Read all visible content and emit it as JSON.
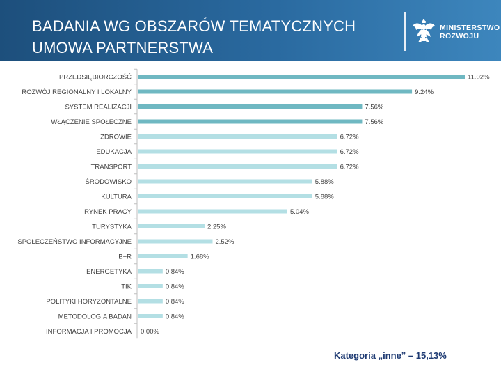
{
  "header": {
    "title_line1": "BADANIA WG OBSZARÓW TEMATYCZNYCH",
    "title_line2": "UMOWA PARTNERSTWA",
    "logo_line1": "MINISTERSTWO",
    "logo_line2": "ROZWOJU",
    "logo_icon": "eagle-emblem"
  },
  "footnote": "Kategoria „inne” – 15,13%",
  "colors": {
    "dark_bar": "#6fb8c2",
    "light_bar": "#b3dfe4",
    "text": "#404040",
    "footnote": "#1f3b73"
  },
  "chart_data": {
    "type": "bar",
    "orientation": "horizontal",
    "title": "",
    "xlabel": "",
    "ylabel": "",
    "xlim": [
      0,
      11.02
    ],
    "unit": "%",
    "categories": [
      "PRZEDSIĘBIORCZOŚĆ",
      "ROZWÓJ REGIONALNY I LOKALNY",
      "SYSTEM REALIZACJI",
      "WŁĄCZENIE SPOŁECZNE",
      "ZDROWIE",
      "EDUKACJA",
      "TRANSPORT",
      "ŚRODOWISKO",
      "KULTURA",
      "RYNEK PRACY",
      "TURYSTYKA",
      "SPOŁECZEŃSTWO INFORMACYJNE",
      "B+R",
      "ENERGETYKA",
      "TIK",
      "POLITYKI HORYZONTALNE",
      "METODOLOGIA BADAŃ",
      "INFORMACJA I PROMOCJA"
    ],
    "values": [
      11.02,
      9.24,
      7.56,
      7.56,
      6.72,
      6.72,
      6.72,
      5.88,
      5.88,
      5.04,
      2.25,
      2.52,
      1.68,
      0.84,
      0.84,
      0.84,
      0.84,
      0.0
    ],
    "value_labels": [
      "11.02%",
      "9.24%",
      "7.56%",
      "7.56%",
      "6.72%",
      "6.72%",
      "6.72%",
      "5.88%",
      "5.88%",
      "5.04%",
      "2.25%",
      "2.52%",
      "1.68%",
      "0.84%",
      "0.84%",
      "0.84%",
      "0.84%",
      "0.00%"
    ],
    "highlight_count": 4
  }
}
